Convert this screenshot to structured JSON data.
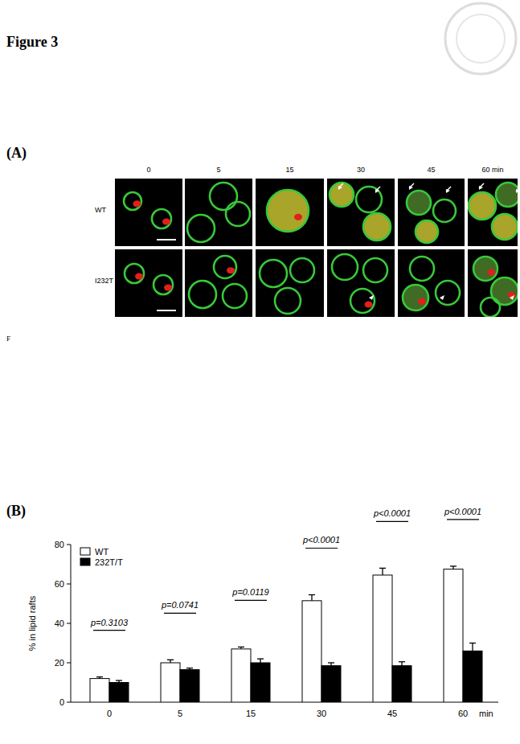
{
  "figure": {
    "title": "Figure 3",
    "stray_mark": "F"
  },
  "panel_a": {
    "label": "(A)",
    "time_labels": [
      "0",
      "5",
      "15",
      "30",
      "45",
      "60 min"
    ],
    "row_labels": [
      "WT",
      "I232T"
    ]
  },
  "chart_data": {
    "type": "bar",
    "panel_label": "(B)",
    "y_label": "% in lipid rafts",
    "x_label": "min",
    "categories": [
      "0",
      "5",
      "15",
      "30",
      "45",
      "60"
    ],
    "series": [
      {
        "name": "WT",
        "color": "#ffffff",
        "values": [
          12,
          20,
          27,
          51.5,
          64.5,
          67.5
        ],
        "errors": [
          0.8,
          1.5,
          1,
          3,
          3.5,
          1.5
        ]
      },
      {
        "name": "232T/T",
        "color": "#000000",
        "values": [
          10,
          16.5,
          20,
          18.5,
          18.5,
          26
        ],
        "errors": [
          1,
          0.8,
          2,
          1.5,
          2,
          4
        ]
      }
    ],
    "annotations": [
      "p=0.3103",
      "p=0.0741",
      "p=0.0119",
      "p<0.0001",
      "p<0.0001",
      "p<0.0001"
    ],
    "ylim": [
      0,
      80
    ],
    "yticks": [
      0,
      20,
      40,
      60,
      80
    ],
    "legend": "top-left",
    "grid": false
  }
}
